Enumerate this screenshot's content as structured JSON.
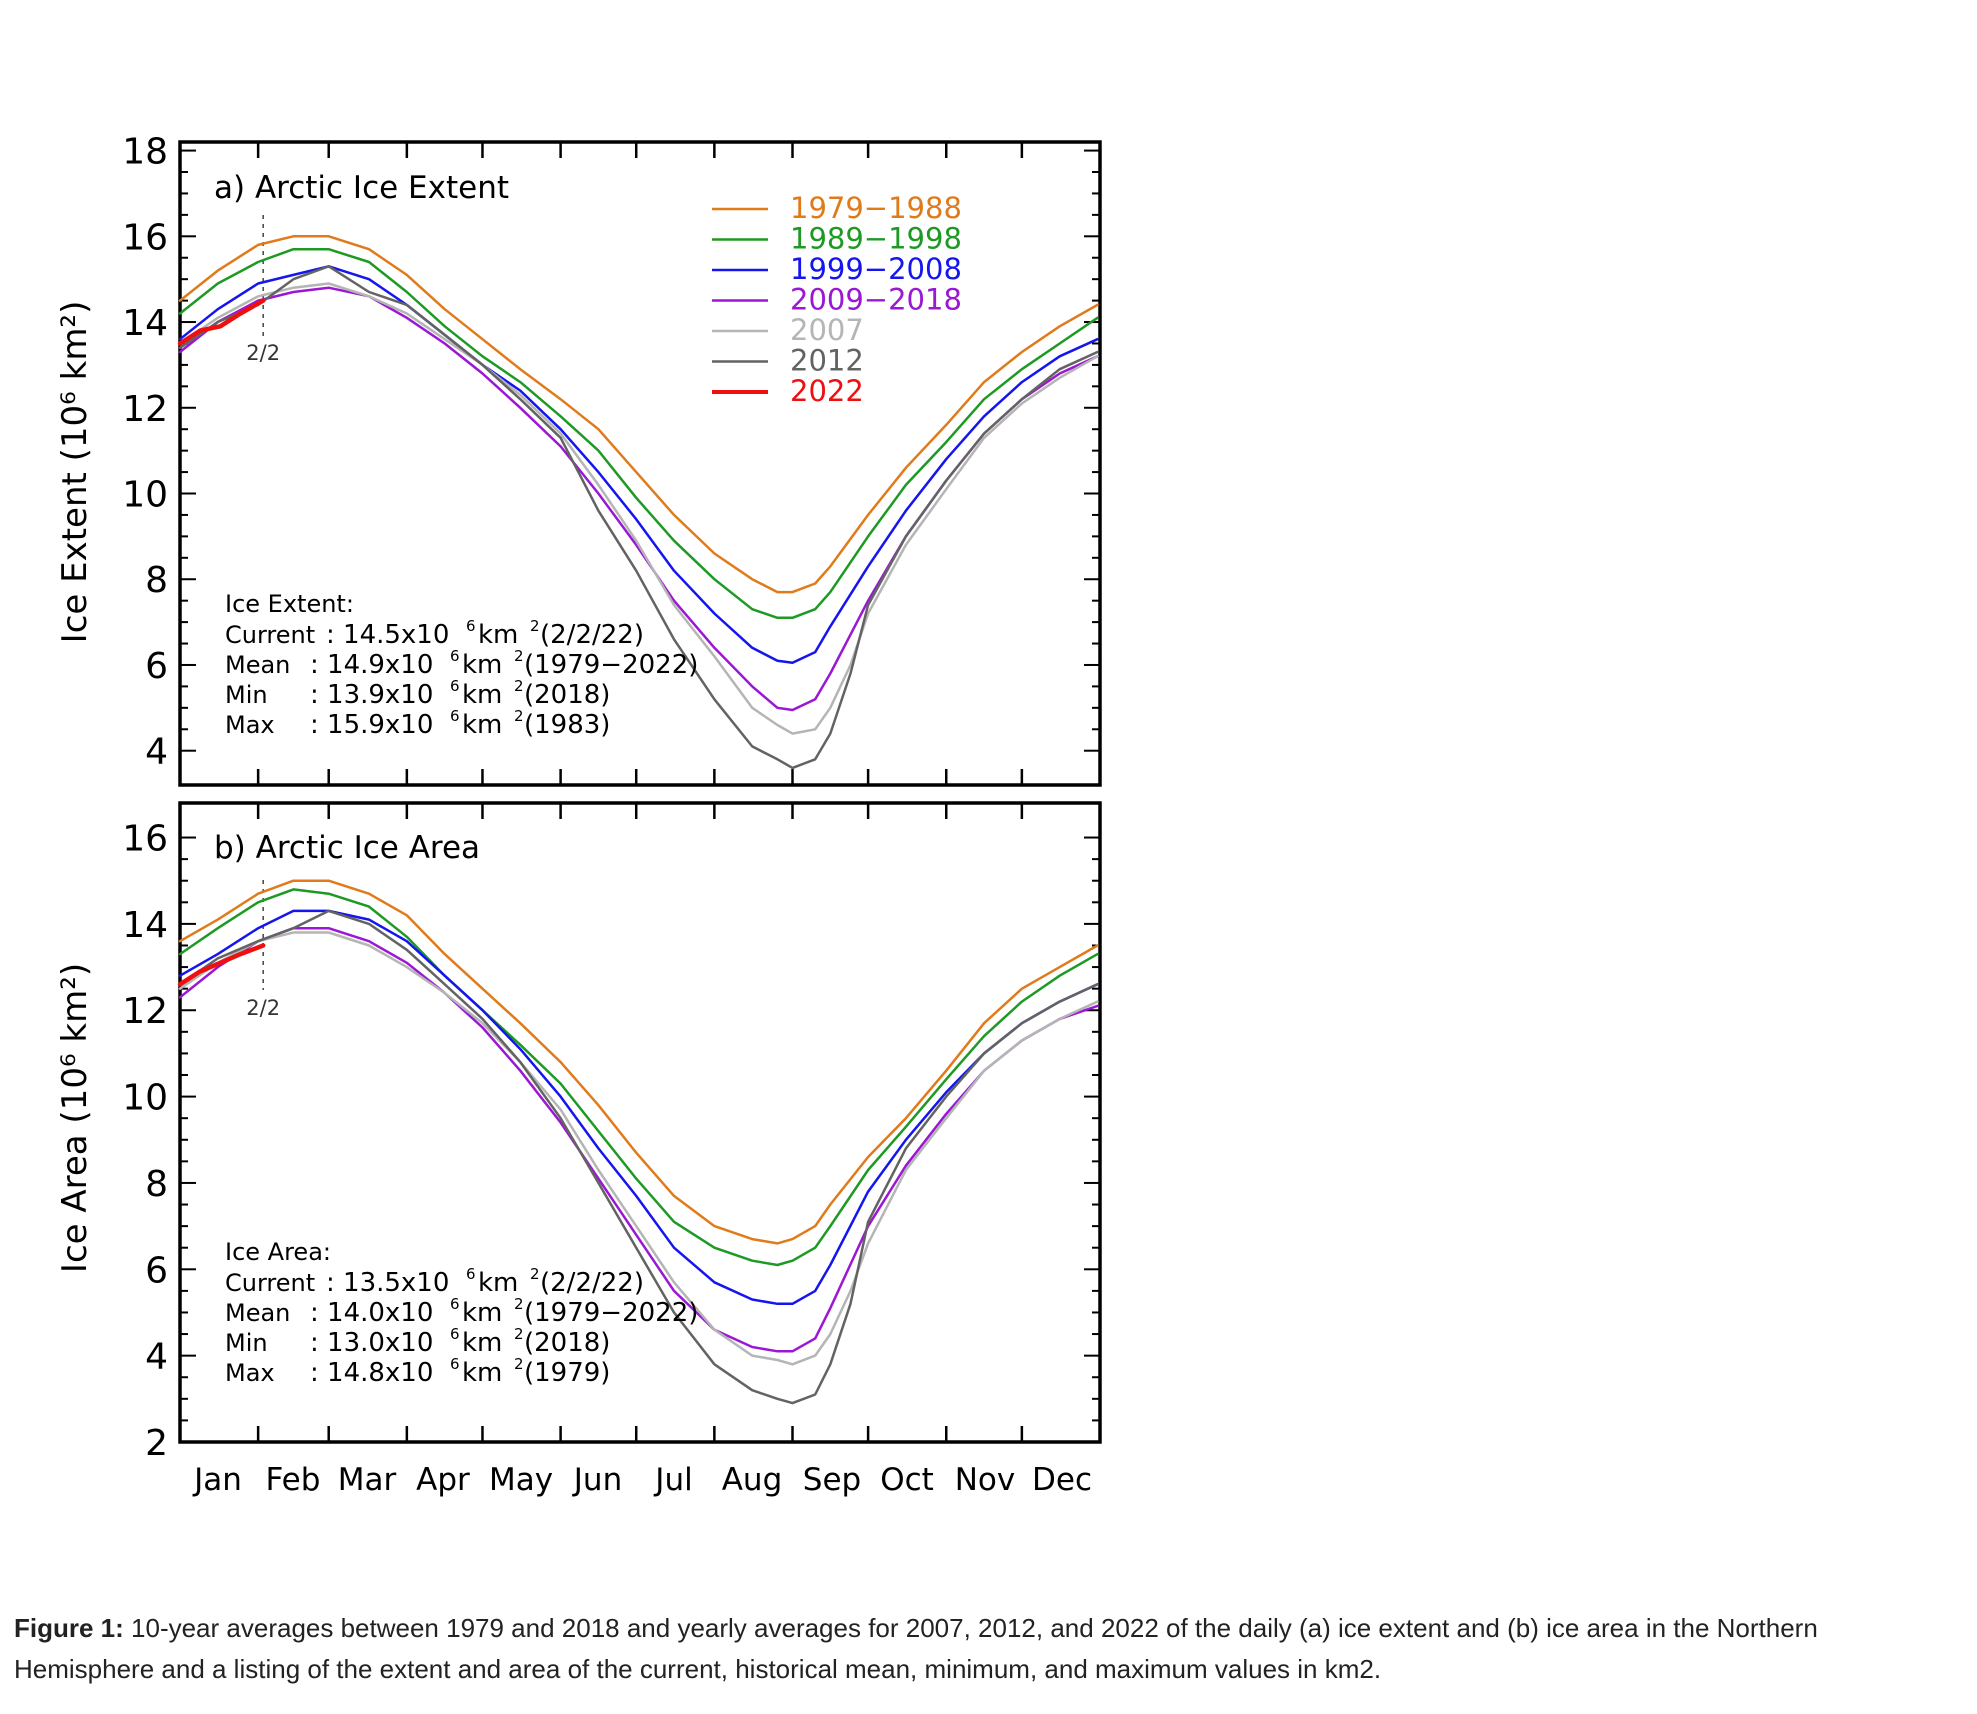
{
  "chart_data": [
    {
      "type": "line",
      "title": "a) Arctic Ice Extent",
      "ylabel": "Ice Extent (10⁶ km²)",
      "ylim": [
        3.2,
        18.2
      ],
      "yticks": [
        4,
        6,
        8,
        10,
        12,
        14,
        16,
        18
      ],
      "xlim": [
        0,
        365
      ],
      "months": [
        "Jan",
        "Feb",
        "Mar",
        "Apr",
        "May",
        "Jun",
        "Jul",
        "Aug",
        "Sep",
        "Oct",
        "Nov",
        "Dec"
      ],
      "marker_label": "2/2",
      "marker_day": 33,
      "legend_position": "top-right",
      "series": [
        {
          "name": "1979−1988",
          "color": "#e07b1c",
          "width": 2.5,
          "x": [
            0,
            15,
            31,
            45,
            59,
            75,
            90,
            105,
            120,
            135,
            151,
            166,
            181,
            196,
            212,
            227,
            237,
            243,
            252,
            258,
            273,
            288,
            304,
            319,
            334,
            349,
            364
          ],
          "y": [
            14.5,
            15.2,
            15.8,
            16.0,
            16.0,
            15.7,
            15.1,
            14.3,
            13.6,
            12.9,
            12.2,
            11.5,
            10.5,
            9.5,
            8.6,
            8.0,
            7.7,
            7.7,
            7.9,
            8.3,
            9.5,
            10.6,
            11.6,
            12.6,
            13.3,
            13.9,
            14.4
          ]
        },
        {
          "name": "1989−1998",
          "color": "#1e9a24",
          "width": 2.5,
          "x": [
            0,
            15,
            31,
            45,
            59,
            75,
            90,
            105,
            120,
            135,
            151,
            166,
            181,
            196,
            212,
            227,
            237,
            243,
            252,
            258,
            273,
            288,
            304,
            319,
            334,
            349,
            364
          ],
          "y": [
            14.2,
            14.9,
            15.4,
            15.7,
            15.7,
            15.4,
            14.7,
            13.9,
            13.2,
            12.6,
            11.8,
            11.0,
            9.9,
            8.9,
            8.0,
            7.3,
            7.1,
            7.1,
            7.3,
            7.7,
            9.0,
            10.2,
            11.2,
            12.2,
            12.9,
            13.5,
            14.1
          ]
        },
        {
          "name": "1999−2008",
          "color": "#1515ee",
          "width": 2.5,
          "x": [
            0,
            15,
            31,
            45,
            59,
            75,
            90,
            105,
            120,
            135,
            151,
            166,
            181,
            196,
            212,
            227,
            237,
            243,
            252,
            258,
            273,
            288,
            304,
            319,
            334,
            349,
            364
          ],
          "y": [
            13.6,
            14.3,
            14.9,
            15.1,
            15.3,
            15.0,
            14.4,
            13.7,
            13.0,
            12.4,
            11.5,
            10.5,
            9.4,
            8.2,
            7.2,
            6.4,
            6.1,
            6.05,
            6.3,
            6.9,
            8.3,
            9.6,
            10.8,
            11.8,
            12.6,
            13.2,
            13.6
          ]
        },
        {
          "name": "2009−2018",
          "color": "#9b17d4",
          "width": 2.5,
          "x": [
            0,
            15,
            31,
            45,
            59,
            75,
            90,
            105,
            120,
            135,
            151,
            166,
            181,
            196,
            212,
            227,
            237,
            243,
            252,
            258,
            273,
            288,
            304,
            319,
            334,
            349,
            364
          ],
          "y": [
            13.3,
            14.0,
            14.5,
            14.7,
            14.8,
            14.6,
            14.1,
            13.5,
            12.8,
            12.0,
            11.1,
            10.0,
            8.8,
            7.5,
            6.4,
            5.5,
            5.0,
            4.95,
            5.2,
            5.8,
            7.5,
            9.0,
            10.3,
            11.4,
            12.2,
            12.8,
            13.2
          ]
        },
        {
          "name": "2007",
          "color": "#b5b5b5",
          "width": 2.5,
          "x": [
            0,
            15,
            31,
            45,
            59,
            75,
            90,
            105,
            120,
            135,
            151,
            166,
            181,
            196,
            212,
            227,
            237,
            243,
            252,
            258,
            266,
            273,
            288,
            304,
            319,
            334,
            349,
            364
          ],
          "y": [
            13.5,
            14.1,
            14.6,
            14.8,
            14.9,
            14.6,
            14.2,
            13.6,
            13.0,
            12.3,
            11.4,
            10.2,
            8.9,
            7.4,
            6.2,
            5.0,
            4.6,
            4.4,
            4.5,
            5.0,
            6.0,
            7.2,
            8.8,
            10.1,
            11.3,
            12.1,
            12.7,
            13.2
          ]
        },
        {
          "name": "2012",
          "color": "#636363",
          "width": 2.5,
          "x": [
            0,
            15,
            31,
            45,
            59,
            75,
            90,
            105,
            120,
            135,
            151,
            166,
            181,
            196,
            212,
            227,
            237,
            243,
            252,
            258,
            266,
            273,
            288,
            304,
            319,
            334,
            349,
            364
          ],
          "y": [
            13.4,
            14.0,
            14.4,
            15.0,
            15.3,
            14.7,
            14.4,
            13.7,
            13.0,
            12.2,
            11.3,
            9.6,
            8.2,
            6.6,
            5.2,
            4.1,
            3.8,
            3.6,
            3.8,
            4.4,
            5.8,
            7.4,
            9.0,
            10.3,
            11.4,
            12.2,
            12.9,
            13.3
          ]
        },
        {
          "name": "2022",
          "color": "#ee1010",
          "width": 4.5,
          "x": [
            0,
            8,
            16,
            24,
            33
          ],
          "y": [
            13.5,
            13.8,
            13.9,
            14.2,
            14.5
          ]
        }
      ],
      "annotation": {
        "title": "Ice Extent:",
        "rows": [
          [
            "Current",
            ": 14.5x10",
            " km",
            " (2/2/22)"
          ],
          [
            "Mean   ",
            ": 14.9x10",
            " km",
            " (1979−2022)"
          ],
          [
            "Min     ",
            ": 13.9x10",
            " km",
            " (2018)"
          ],
          [
            "Max    ",
            ": 15.9x10",
            " km",
            " (1983)"
          ]
        ]
      }
    },
    {
      "type": "line",
      "title": "b) Arctic Ice Area",
      "ylabel": "Ice Area (10⁶ km²)",
      "ylim": [
        2,
        16.8
      ],
      "yticks": [
        2,
        4,
        6,
        8,
        10,
        12,
        14,
        16
      ],
      "xlim": [
        0,
        365
      ],
      "months": [
        "Jan",
        "Feb",
        "Mar",
        "Apr",
        "May",
        "Jun",
        "Jul",
        "Aug",
        "Sep",
        "Oct",
        "Nov",
        "Dec"
      ],
      "marker_label": "2/2",
      "marker_day": 33,
      "series": [
        {
          "name": "1979−1988",
          "color": "#e07b1c",
          "width": 2.5,
          "x": [
            0,
            15,
            31,
            45,
            59,
            75,
            90,
            105,
            120,
            135,
            151,
            166,
            181,
            196,
            212,
            227,
            237,
            243,
            252,
            258,
            273,
            288,
            304,
            319,
            334,
            349,
            364
          ],
          "y": [
            13.6,
            14.1,
            14.7,
            15.0,
            15.0,
            14.7,
            14.2,
            13.3,
            12.5,
            11.7,
            10.8,
            9.8,
            8.7,
            7.7,
            7.0,
            6.7,
            6.6,
            6.7,
            7.0,
            7.5,
            8.6,
            9.5,
            10.6,
            11.7,
            12.5,
            13.0,
            13.5
          ]
        },
        {
          "name": "1989−1998",
          "color": "#1e9a24",
          "width": 2.5,
          "x": [
            0,
            15,
            31,
            45,
            59,
            75,
            90,
            105,
            120,
            135,
            151,
            166,
            181,
            196,
            212,
            227,
            237,
            243,
            252,
            258,
            273,
            288,
            304,
            319,
            334,
            349,
            364
          ],
          "y": [
            13.3,
            13.9,
            14.5,
            14.8,
            14.7,
            14.4,
            13.7,
            12.8,
            12.0,
            11.2,
            10.3,
            9.2,
            8.1,
            7.1,
            6.5,
            6.2,
            6.1,
            6.2,
            6.5,
            7.0,
            8.3,
            9.3,
            10.4,
            11.4,
            12.2,
            12.8,
            13.3
          ]
        },
        {
          "name": "1999−2008",
          "color": "#1515ee",
          "width": 2.5,
          "x": [
            0,
            15,
            31,
            45,
            59,
            75,
            90,
            105,
            120,
            135,
            151,
            166,
            181,
            196,
            212,
            227,
            237,
            243,
            252,
            258,
            273,
            288,
            304,
            319,
            334,
            349,
            364
          ],
          "y": [
            12.8,
            13.3,
            13.9,
            14.3,
            14.3,
            14.1,
            13.6,
            12.8,
            12.0,
            11.1,
            10.0,
            8.8,
            7.7,
            6.5,
            5.7,
            5.3,
            5.2,
            5.2,
            5.5,
            6.1,
            7.8,
            9.0,
            10.1,
            11.0,
            11.7,
            12.2,
            12.6
          ]
        },
        {
          "name": "2009−2018",
          "color": "#9b17d4",
          "width": 2.5,
          "x": [
            0,
            15,
            31,
            45,
            59,
            75,
            90,
            105,
            120,
            135,
            151,
            166,
            181,
            196,
            212,
            227,
            237,
            243,
            252,
            258,
            273,
            288,
            304,
            319,
            334,
            349,
            364
          ],
          "y": [
            12.3,
            13.0,
            13.6,
            13.9,
            13.9,
            13.6,
            13.1,
            12.4,
            11.6,
            10.6,
            9.4,
            8.1,
            6.8,
            5.5,
            4.6,
            4.2,
            4.1,
            4.1,
            4.4,
            5.1,
            7.0,
            8.4,
            9.6,
            10.6,
            11.3,
            11.8,
            12.1
          ]
        },
        {
          "name": "2007",
          "color": "#b5b5b5",
          "width": 2.5,
          "x": [
            0,
            15,
            31,
            45,
            59,
            75,
            90,
            105,
            120,
            135,
            151,
            166,
            181,
            196,
            212,
            227,
            237,
            243,
            252,
            258,
            266,
            273,
            288,
            304,
            319,
            334,
            349,
            364
          ],
          "y": [
            12.5,
            13.1,
            13.6,
            13.8,
            13.8,
            13.5,
            13.0,
            12.4,
            11.7,
            10.8,
            9.7,
            8.3,
            7.0,
            5.7,
            4.6,
            4.0,
            3.9,
            3.8,
            4.0,
            4.5,
            5.5,
            6.6,
            8.3,
            9.5,
            10.6,
            11.3,
            11.8,
            12.2
          ]
        },
        {
          "name": "2012",
          "color": "#636363",
          "width": 2.5,
          "x": [
            0,
            15,
            31,
            45,
            59,
            75,
            90,
            105,
            120,
            135,
            151,
            166,
            181,
            196,
            212,
            227,
            237,
            243,
            252,
            258,
            266,
            273,
            288,
            304,
            319,
            334,
            349,
            364
          ],
          "y": [
            12.6,
            13.2,
            13.6,
            13.9,
            14.3,
            14.0,
            13.4,
            12.6,
            11.8,
            10.8,
            9.5,
            8.0,
            6.5,
            5.0,
            3.8,
            3.2,
            3.0,
            2.9,
            3.1,
            3.8,
            5.2,
            7.1,
            8.8,
            10.0,
            11.0,
            11.7,
            12.2,
            12.6
          ]
        },
        {
          "name": "2022",
          "color": "#ee1010",
          "width": 4.5,
          "x": [
            0,
            8,
            16,
            24,
            33
          ],
          "y": [
            12.6,
            12.9,
            13.1,
            13.3,
            13.5
          ]
        }
      ],
      "annotation": {
        "title": "Ice Area:",
        "rows": [
          [
            "Current",
            ": 13.5x10",
            " km",
            " (2/2/22)"
          ],
          [
            "Mean   ",
            ": 14.0x10",
            " km",
            " (1979−2022)"
          ],
          [
            "Min     ",
            ": 13.0x10",
            " km",
            " (2018)"
          ],
          [
            "Max    ",
            ": 14.8x10",
            " km",
            " (1979)"
          ]
        ]
      }
    }
  ],
  "caption": {
    "label": "Figure 1:",
    "text": " 10-year averages between 1979 and 2018 and yearly averages for 2007, 2012, and 2022 of the daily (a) ice extent and (b) ice area in the Northern Hemisphere and a listing of the extent and area of the current, historical mean, minimum, and maximum values in km2."
  }
}
